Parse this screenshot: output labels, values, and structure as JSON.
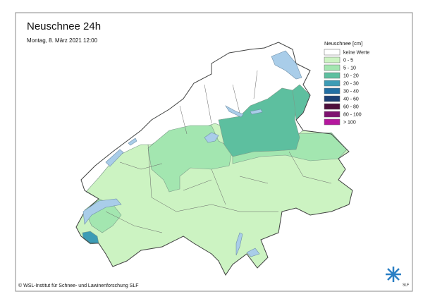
{
  "header": {
    "title": "Neuschnee 24h",
    "subtitle": "Montag, 8. März 2021 12:00"
  },
  "legend": {
    "title": "Neuschnee [cm]",
    "items": [
      {
        "label": "keine Werte",
        "color": "#ffffff"
      },
      {
        "label": "0 - 5",
        "color": "#ccf3c2"
      },
      {
        "label": "5 - 10",
        "color": "#a3e6b0"
      },
      {
        "label": "10 - 20",
        "color": "#5dbf9f"
      },
      {
        "label": "20 - 30",
        "color": "#3d9cb5"
      },
      {
        "label": "30 - 40",
        "color": "#236fa3"
      },
      {
        "label": "40 - 60",
        "color": "#1c3f74"
      },
      {
        "label": "60 - 80",
        "color": "#4e0f3c"
      },
      {
        "label": "80 - 100",
        "color": "#7e1270"
      },
      {
        "label": "> 100",
        "color": "#b5189e"
      }
    ]
  },
  "footer": {
    "credit": "© WSL-Institut für Schnee- und Lawinenforschung SLF",
    "logo": "SLF"
  }
}
